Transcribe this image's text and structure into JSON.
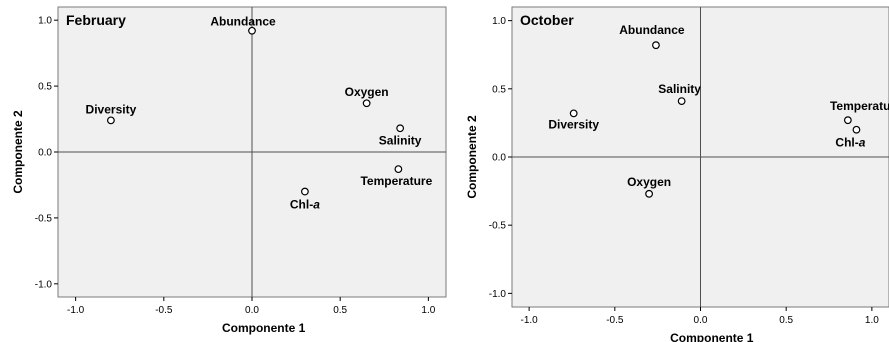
{
  "chart_data": [
    {
      "type": "scatter",
      "title": "February",
      "xlabel": "Componente 1",
      "ylabel": "Componente 2",
      "xlim": [
        -1.1,
        1.1
      ],
      "ylim": [
        -1.1,
        1.1
      ],
      "xticks": [
        -1.0,
        -0.5,
        0.0,
        0.5,
        1.0
      ],
      "yticks": [
        -1.0,
        -0.5,
        0.0,
        0.5,
        1.0
      ],
      "xtick_labels": [
        "-1.0",
        "-0.5",
        "0.0",
        "0.5",
        "1.0"
      ],
      "ytick_labels": [
        "-1.0",
        "-0.5",
        "0.0",
        "0.5",
        "1.0"
      ],
      "grid": false,
      "reference_lines": "x=0 and y=0",
      "points": [
        {
          "label": "Abundance",
          "x": 0.0,
          "y": 0.92
        },
        {
          "label": "Diversity",
          "x": -0.8,
          "y": 0.24
        },
        {
          "label": "Oxygen",
          "x": 0.65,
          "y": 0.37
        },
        {
          "label": "Salinity",
          "x": 0.84,
          "y": 0.18
        },
        {
          "label": "Temperature",
          "x": 0.83,
          "y": -0.13
        },
        {
          "label": "Chl-a",
          "x": 0.3,
          "y": -0.3
        }
      ]
    },
    {
      "type": "scatter",
      "title": "October",
      "xlabel": "Componente 1",
      "ylabel": "Componente 2",
      "xlim": [
        -1.1,
        1.1
      ],
      "ylim": [
        -1.1,
        1.1
      ],
      "xticks": [
        -1.0,
        -0.5,
        0.0,
        0.5,
        1.0
      ],
      "yticks": [
        -1.0,
        -0.5,
        0.0,
        0.5,
        1.0
      ],
      "xtick_labels": [
        "-1.0",
        "-0.5",
        "0.0",
        "0.5",
        "1.0"
      ],
      "ytick_labels": [
        "-1.0",
        "-0.5",
        "0.0",
        "0.5",
        "1.0"
      ],
      "grid": false,
      "reference_lines": "x=0 and y=0",
      "points": [
        {
          "label": "Abundance",
          "x": -0.26,
          "y": 0.82
        },
        {
          "label": "Diversity",
          "x": -0.74,
          "y": 0.32
        },
        {
          "label": "Salinity",
          "x": -0.11,
          "y": 0.41
        },
        {
          "label": "Oxygen",
          "x": -0.3,
          "y": -0.27
        },
        {
          "label": "Temperature",
          "x": 0.86,
          "y": 0.27
        },
        {
          "label": "Chl-a",
          "x": 0.91,
          "y": 0.2
        }
      ]
    }
  ],
  "colors": {
    "plot_background": "#f0f0f0",
    "frame": "#7a7a7a",
    "reference_line": "#505050",
    "marker_stroke": "#000000",
    "marker_fill": "#ffffff",
    "text": "#000000"
  }
}
